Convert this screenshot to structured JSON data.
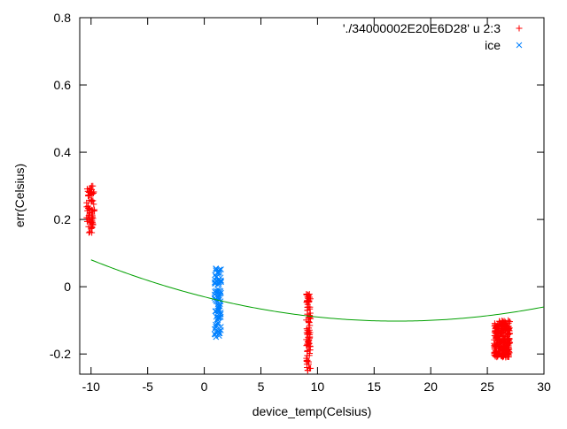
{
  "chart_data": {
    "type": "scatter",
    "xlabel": "device_temp(Celsius)",
    "ylabel": "err(Celsius)",
    "xlim": [
      -11,
      30
    ],
    "ylim": [
      -0.26,
      0.8
    ],
    "x_ticks": [
      -10,
      -5,
      0,
      5,
      10,
      15,
      20,
      25,
      30
    ],
    "x_tick_labels": [
      "-10",
      "-5",
      "0",
      "5",
      "10",
      "15",
      "20",
      "25",
      "30"
    ],
    "y_ticks": [
      -0.2,
      0,
      0.2,
      0.4,
      0.6,
      0.8
    ],
    "y_tick_labels": [
      "-0.2",
      "0",
      "0.2",
      "0.4",
      "0.6",
      "0.8"
    ],
    "legend_position": "top-right",
    "series": [
      {
        "name": "'./34000002E20E6D28' u 2:3",
        "marker": "plus",
        "color": "#ff0000",
        "clusters": [
          {
            "x": [
              -10.4,
              -9.7
            ],
            "y": [
              0.16,
              0.3
            ],
            "count": 70
          },
          {
            "x": [
              9.0,
              9.4
            ],
            "y": [
              -0.25,
              -0.02
            ],
            "count": 90
          },
          {
            "x": [
              25.6,
              27.0
            ],
            "y": [
              -0.21,
              -0.1
            ],
            "count": 260
          }
        ]
      },
      {
        "name": "ice",
        "marker": "cross",
        "color": "#0080ff",
        "clusters": [
          {
            "x": [
              0.9,
              1.5
            ],
            "y": [
              -0.15,
              0.06
            ],
            "count": 90
          }
        ]
      },
      {
        "name": "",
        "type": "line",
        "color": "#00a000",
        "fit": {
          "form": "quadratic",
          "coefficients": [
            -0.03,
            -0.0085,
            0.00025
          ]
        }
      }
    ]
  }
}
